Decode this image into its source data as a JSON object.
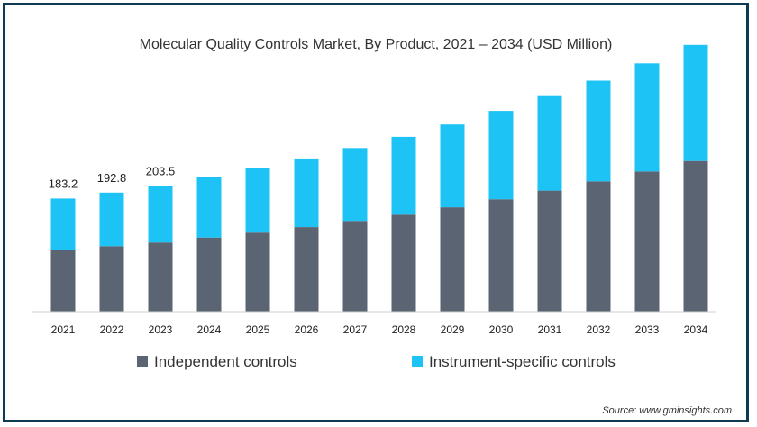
{
  "chart_data": {
    "type": "bar",
    "stacked": true,
    "title": "Molecular Quality Controls Market, By Product, 2021 – 2034 (USD Million)",
    "xlabel": "",
    "ylabel": "",
    "categories": [
      "2021",
      "2022",
      "2023",
      "2024",
      "2025",
      "2026",
      "2027",
      "2028",
      "2029",
      "2030",
      "2031",
      "2032",
      "2033",
      "2034"
    ],
    "series": [
      {
        "name": "Independent controls",
        "color": "#5b6472",
        "values": [
          100,
          106,
          112,
          120,
          128,
          137,
          147,
          157,
          169,
          182,
          196,
          211,
          227,
          244
        ]
      },
      {
        "name": "Instrument-specific controls",
        "color": "#1ec3f5",
        "values": [
          83.2,
          86.8,
          91.5,
          98,
          104,
          111,
          118,
          126,
          134,
          143,
          153,
          163,
          175,
          188
        ]
      }
    ],
    "data_labels": [
      "183.2",
      "192.8",
      "203.5"
    ],
    "ylim": [
      0,
      455
    ],
    "grid": false,
    "legend_position": "bottom",
    "source": "Source: www.gminsights.com"
  }
}
